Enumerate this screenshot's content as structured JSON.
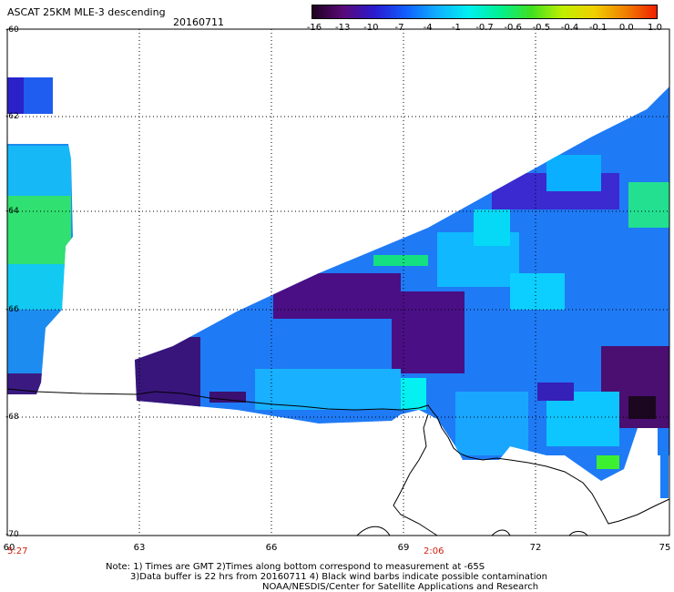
{
  "header": {
    "title": "ASCAT 25KM MLE-3 descending",
    "date": "20160711"
  },
  "colorbar": {
    "labels": [
      "-16",
      "-13",
      "-10",
      "-7",
      "-4",
      "-1",
      "-0.7",
      "-0.6",
      "-0.5",
      "-0.4",
      "-0.1",
      "0.0",
      "1.0"
    ],
    "colors": [
      "#200020",
      "#5a0a7a",
      "#2a1ad0",
      "#1060ff",
      "#10b0ff",
      "#00f0f0",
      "#00f090",
      "#40e020",
      "#c0f000",
      "#f0d000",
      "#f08000",
      "#f02000"
    ]
  },
  "axes": {
    "y_ticks": [
      "-60",
      "-62",
      "-64",
      "-66",
      "-68",
      "-70"
    ],
    "x_ticks": [
      "60",
      "63",
      "66",
      "69",
      "72",
      "75"
    ]
  },
  "times": {
    "left": "5:27",
    "middle": "2:06"
  },
  "notes": {
    "line1": "Note: 1) Times are GMT 2)Times along bottom correspond to measurement at -65S",
    "line2": "3)Data buffer is 22 hrs from 20160711 4) Black wind barbs indicate possible contamination",
    "line3": "NOAA/NESDIS/Center for Satellite Applications and Research"
  }
}
